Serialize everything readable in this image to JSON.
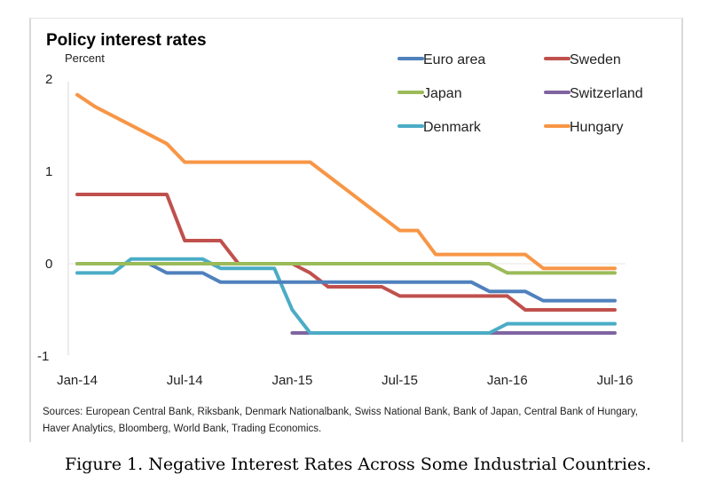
{
  "chart_data": {
    "type": "line",
    "title": "Policy interest rates",
    "ylabel": "Percent",
    "xlabel": "",
    "ylim": [
      -1,
      2
    ],
    "yticks": [
      2,
      1,
      0,
      -1
    ],
    "ytick_labels": [
      "2",
      "1",
      "0",
      "-1"
    ],
    "xticks": [
      "Jan-14",
      "Jul-14",
      "Jan-15",
      "Jul-15",
      "Jan-16",
      "Jul-16"
    ],
    "x_unit": "months since Jan-14",
    "grid": false,
    "legend_position": "top-right",
    "series": [
      {
        "name": "Euro area",
        "color": "#4F81BD",
        "points": [
          [
            0,
            0
          ],
          [
            4,
            0
          ],
          [
            5,
            -0.1
          ],
          [
            7,
            -0.1
          ],
          [
            8,
            -0.2
          ],
          [
            22,
            -0.2
          ],
          [
            23,
            -0.3
          ],
          [
            25,
            -0.3
          ],
          [
            26,
            -0.4
          ],
          [
            30,
            -0.4
          ]
        ]
      },
      {
        "name": "Sweden",
        "color": "#C0504D",
        "points": [
          [
            0,
            0.75
          ],
          [
            5,
            0.75
          ],
          [
            6,
            0.25
          ],
          [
            8,
            0.25
          ],
          [
            9,
            0
          ],
          [
            12,
            0
          ],
          [
            13,
            -0.1
          ],
          [
            14,
            -0.25
          ],
          [
            17,
            -0.25
          ],
          [
            18,
            -0.35
          ],
          [
            24,
            -0.35
          ],
          [
            25,
            -0.5
          ],
          [
            30,
            -0.5
          ]
        ]
      },
      {
        "name": "Japan",
        "color": "#9BBB59",
        "points": [
          [
            0,
            0
          ],
          [
            23,
            0
          ],
          [
            24,
            -0.1
          ],
          [
            30,
            -0.1
          ]
        ]
      },
      {
        "name": "Switzerland",
        "color": "#8064A2",
        "points": [
          [
            12,
            -0.75
          ],
          [
            30,
            -0.75
          ]
        ]
      },
      {
        "name": "Denmark",
        "color": "#4BACC6",
        "points": [
          [
            0,
            -0.1
          ],
          [
            2,
            -0.1
          ],
          [
            3,
            0.05
          ],
          [
            7,
            0.05
          ],
          [
            8,
            -0.05
          ],
          [
            11,
            -0.05
          ],
          [
            12,
            -0.5
          ],
          [
            13,
            -0.75
          ],
          [
            23,
            -0.75
          ],
          [
            24,
            -0.65
          ],
          [
            30,
            -0.65
          ]
        ]
      },
      {
        "name": "Hungary",
        "color": "#F79646",
        "points": [
          [
            0,
            1.83
          ],
          [
            1,
            1.7
          ],
          [
            5,
            1.3
          ],
          [
            6,
            1.1
          ],
          [
            13,
            1.1
          ],
          [
            18,
            0.36
          ],
          [
            19,
            0.36
          ],
          [
            20,
            0.1
          ],
          [
            25,
            0.1
          ],
          [
            26,
            -0.05
          ],
          [
            30,
            -0.05
          ]
        ]
      }
    ]
  },
  "sources": "Sources: European Central Bank, Riksbank, Denmark Nationalbank, Swiss National Bank, Bank of Japan, Central Bank of Hungary, Haver Analytics, Bloomberg, World Bank, Trading Economics.",
  "caption": "Figure 1. Negative Interest Rates Across Some Industrial Countries."
}
